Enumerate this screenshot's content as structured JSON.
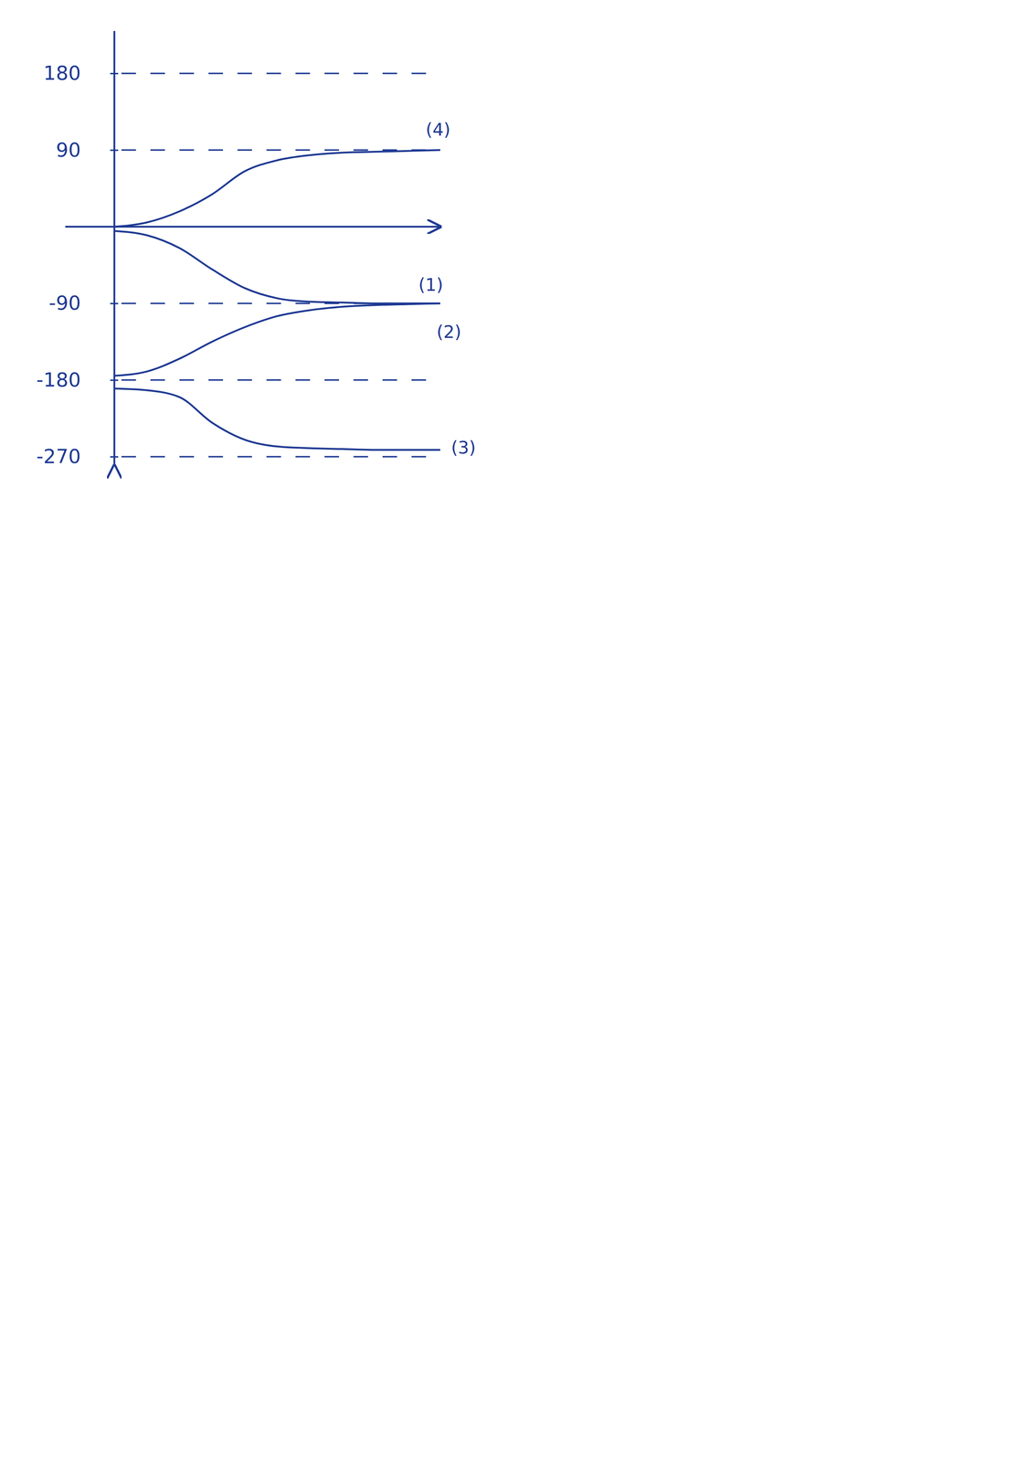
{
  "chart_data": {
    "type": "line",
    "x": [
      0,
      1,
      2,
      3,
      4,
      5,
      6,
      7,
      8,
      9,
      10
    ],
    "xlim": [
      -1.5,
      10
    ],
    "ylim": [
      -280,
      230
    ],
    "yticks": [
      180,
      90,
      -90,
      -180,
      -270
    ],
    "grid": true,
    "tick_labels": "y",
    "color": "#1f3a93",
    "series": [
      {
        "name": "(4)",
        "values": [
          0,
          5,
          18,
          38,
          65,
          78,
          84,
          87,
          88,
          89,
          90
        ]
      },
      {
        "name": "(1)",
        "values": [
          -5,
          -10,
          -25,
          -50,
          -72,
          -84,
          -88,
          -89,
          -90,
          -90,
          -90
        ]
      },
      {
        "name": "(2)",
        "values": [
          -175,
          -170,
          -155,
          -135,
          -118,
          -105,
          -98,
          -94,
          -92,
          -91,
          -90
        ]
      },
      {
        "name": "(3)",
        "values": [
          -190,
          -192,
          -200,
          -230,
          -250,
          -258,
          -260,
          -261,
          -262,
          -262,
          -262
        ]
      }
    ]
  }
}
